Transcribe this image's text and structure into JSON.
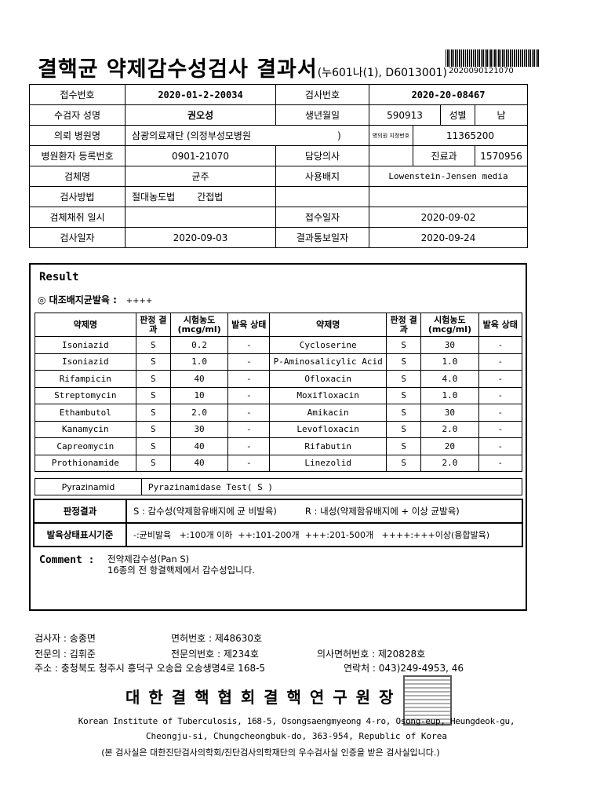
{
  "header": {
    "title": "결핵균 약제감수성검사 결과서",
    "form_code": "(누601나(1), D6013001)",
    "barcode_number": "2020090121070"
  },
  "info": {
    "receipt_no_label": "접수번호",
    "receipt_no": "2020-01-2-20034",
    "test_no_label": "검사번호",
    "test_no": "2020-20-08467",
    "patient_name_label": "수검자 성명",
    "patient_name": "권오성",
    "birth_label": "생년월일",
    "birth": "590913",
    "sex_label": "성별",
    "sex": "남",
    "hospital_label": "의뢰 병원명",
    "hospital": "삼광의료재단 (의정부성모병원",
    "hospital_close": ")",
    "hospital_code_label": "병의원 지정번호",
    "hospital_code": "11365200",
    "reg_no_label": "병원환자 등록번호",
    "reg_no": "0901-21070",
    "doctor_label": "담당의사",
    "doctor": "",
    "dept_label": "진료과",
    "dept": "1570956",
    "specimen_label": "검체명",
    "specimen": "균주",
    "medium_label": "사용배지",
    "medium": "Lowenstein-Jensen media",
    "method_label": "검사방법",
    "method_1": "절대농도법",
    "method_2": "간접법",
    "collect_label": "검체채취 일시",
    "collect": "",
    "receive_date_label": "접수일자",
    "receive_date": "2020-09-02",
    "test_date_label": "검사일자",
    "test_date": "2020-09-03",
    "report_date_label": "결과통보일자",
    "report_date": "2020-09-24"
  },
  "result": {
    "title": "Result",
    "control_label": "◎ 대조배지균발육 :",
    "control_value": "++++",
    "headers": [
      "약제명",
      "판정 결과",
      "시험농도 (mcg/ml)",
      "발육 상태",
      "약제명",
      "판정 결과",
      "시험농도 (mcg/ml)",
      "발육 상태"
    ],
    "rows": [
      [
        "Isoniazid",
        "S",
        "0.2",
        "-",
        "Cycloserine",
        "S",
        "30",
        "-"
      ],
      [
        "Isoniazid",
        "S",
        "1.0",
        "-",
        "P-Aminosalicylic Acid",
        "S",
        "1.0",
        "-"
      ],
      [
        "Rifampicin",
        "S",
        "40",
        "-",
        "Ofloxacin",
        "S",
        "4.0",
        "-"
      ],
      [
        "Streptomycin",
        "S",
        "10",
        "-",
        "Moxifloxacin",
        "S",
        "1.0",
        "-"
      ],
      [
        "Ethambutol",
        "S",
        "2.0",
        "-",
        "Amikacin",
        "S",
        "30",
        "-"
      ],
      [
        "Kanamycin",
        "S",
        "30",
        "-",
        "Levofloxacin",
        "S",
        "2.0",
        "-"
      ],
      [
        "Capreomycin",
        "S",
        "40",
        "-",
        "Rifabutin",
        "S",
        "20",
        "-"
      ],
      [
        "Prothionamide",
        "S",
        "40",
        "-",
        "Linezolid",
        "S",
        "2.0",
        "-"
      ]
    ],
    "pza_label": "Pyrazinamid",
    "pza_value": "Pyrazinamidase Test( S )",
    "judgement_label": "판정결과",
    "judgement_s": "S : 감수성(약제함유배지에 균 비발육)",
    "judgement_r": "R : 내성(약제함유배지에 + 이상 균발육)",
    "growth_label": "발육상태표시기준",
    "growth_text": "-:균비발육   +:100개 이하  ++:101-200개  +++:201-500개   ++++:+++이상(융합발육)",
    "comment_label": "Comment :",
    "comment_1": "전약제감수성(Pan S)",
    "comment_2": "16종의 전 항결핵제에서 감수성입니다."
  },
  "footer": {
    "tester": "검사자 :  송종면",
    "license_no": "면허번호   :  제48630호",
    "specialist": "전문의 :  김휘준",
    "specialist_no": "전문의번호 :  제234호",
    "doctor_license": "의사면허번호 : 제20828호",
    "address": "주소 : 충청북도 청주시 흥덕구 오송읍 오송생명4로 168-5",
    "contact": "연락처 :  043)249-4953, 46",
    "org": "대 한 결 핵 협 회   결 핵 연 구 원 장",
    "address_en_1": "Korean Institute of Tuberculosis, 168-5, Osongsaengmyeong 4-ro, Osong-eup, Heungdeok-gu,",
    "address_en_2": "Cheongju-si, Chungcheongbuk-do, 363-954, Republic of Korea",
    "cert": "(본 검사실은 대한진단검사의학회/진단검사의학재단의 우수검사실 인증을 받은 검사실입니다.)"
  }
}
